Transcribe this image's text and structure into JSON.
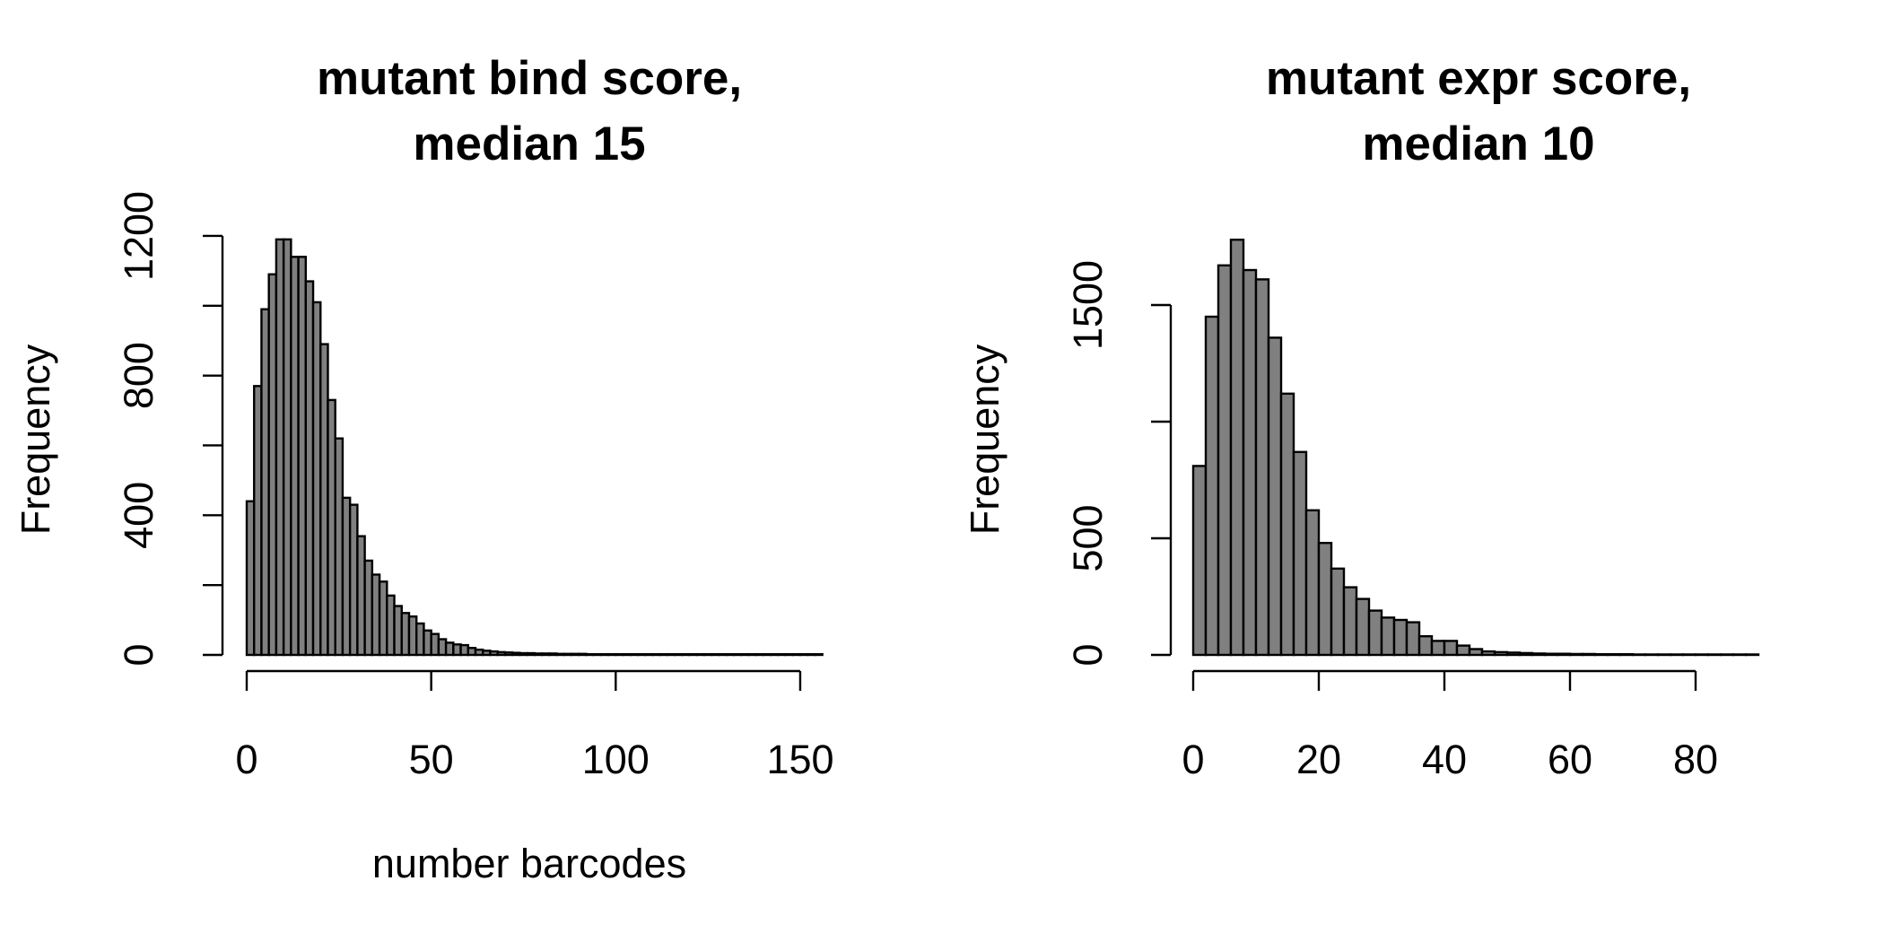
{
  "chart_data": [
    {
      "type": "bar",
      "title_line1": "mutant bind score,",
      "title_line2": "median 15",
      "xlabel": "number barcodes",
      "ylabel": "Frequency",
      "x_ticks": [
        "0",
        "50",
        "100",
        "150"
      ],
      "y_ticks": [
        "0",
        "400",
        "800",
        "1200"
      ],
      "xlim": [
        0,
        155
      ],
      "ylim": [
        0,
        1200
      ],
      "bin_width": 2,
      "bin_start": 0,
      "values": [
        440,
        770,
        990,
        1090,
        1190,
        1190,
        1140,
        1140,
        1070,
        1010,
        890,
        730,
        620,
        450,
        430,
        340,
        270,
        230,
        210,
        170,
        140,
        120,
        110,
        90,
        70,
        60,
        45,
        35,
        30,
        28,
        20,
        15,
        12,
        10,
        8,
        7,
        6,
        5,
        5,
        4,
        4,
        4,
        3,
        3,
        3,
        3,
        2,
        2,
        2,
        2,
        2,
        2,
        2,
        2,
        2,
        2,
        2,
        2,
        2,
        2,
        2,
        2,
        2,
        2,
        2,
        2,
        2,
        2,
        2,
        2,
        2,
        2,
        2,
        2,
        2,
        2,
        2,
        2
      ]
    },
    {
      "type": "bar",
      "title_line1": "mutant expr score,",
      "title_line2": "median 10",
      "xlabel": "",
      "ylabel": "Frequency",
      "x_ticks": [
        "0",
        "20",
        "40",
        "60",
        "80"
      ],
      "y_ticks": [
        "0",
        "500",
        "1500"
      ],
      "xlim": [
        0,
        90
      ],
      "ylim": [
        0,
        1800
      ],
      "bin_width": 2,
      "bin_start": 0,
      "values": [
        810,
        1450,
        1670,
        1780,
        1650,
        1610,
        1360,
        1120,
        870,
        620,
        480,
        370,
        290,
        240,
        190,
        160,
        150,
        140,
        80,
        60,
        60,
        40,
        25,
        15,
        12,
        10,
        8,
        6,
        5,
        5,
        4,
        4,
        3,
        3,
        3,
        2,
        2,
        2,
        2,
        2,
        2,
        2,
        2,
        2,
        2
      ]
    }
  ]
}
